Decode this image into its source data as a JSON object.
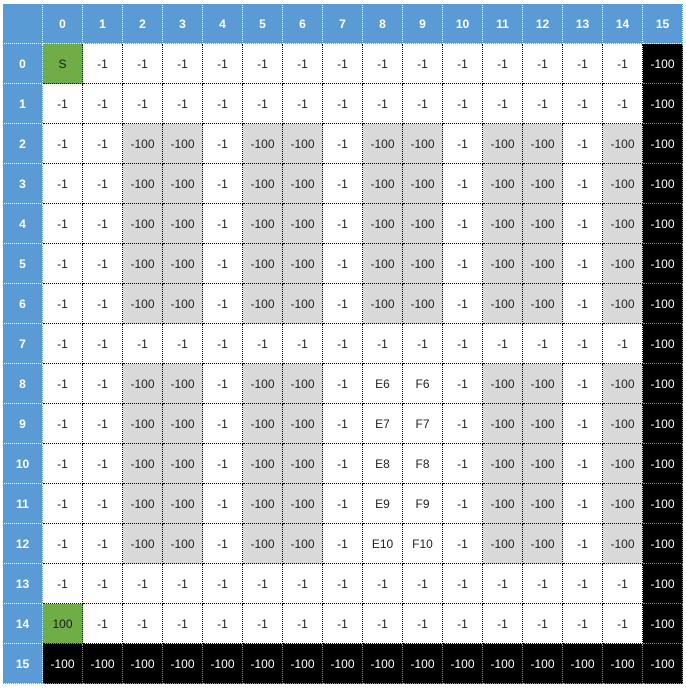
{
  "grid": {
    "column_headers": [
      "",
      "0",
      "1",
      "2",
      "3",
      "4",
      "5",
      "6",
      "7",
      "8",
      "9",
      "10",
      "11",
      "12",
      "13",
      "14",
      "15"
    ],
    "row_headers": [
      "0",
      "1",
      "2",
      "3",
      "4",
      "5",
      "6",
      "7",
      "8",
      "9",
      "10",
      "11",
      "12",
      "13",
      "14",
      "15"
    ],
    "colors": {
      "header": "#5b9bd5",
      "white": "#ffffff",
      "gray": "#d9d9d9",
      "green": "#70ad47",
      "black": "#000000"
    },
    "rows": [
      {
        "values": [
          "S",
          "-1",
          "-1",
          "-1",
          "-1",
          "-1",
          "-1",
          "-1",
          "-1",
          "-1",
          "-1",
          "-1",
          "-1",
          "-1",
          "-1",
          "-100"
        ],
        "fills": [
          "green",
          "white",
          "white",
          "white",
          "white",
          "white",
          "white",
          "white",
          "white",
          "white",
          "white",
          "white",
          "white",
          "white",
          "white",
          "black"
        ]
      },
      {
        "values": [
          "-1",
          "-1",
          "-1",
          "-1",
          "-1",
          "-1",
          "-1",
          "-1",
          "-1",
          "-1",
          "-1",
          "-1",
          "-1",
          "-1",
          "-1",
          "-100"
        ],
        "fills": [
          "white",
          "white",
          "white",
          "white",
          "white",
          "white",
          "white",
          "white",
          "white",
          "white",
          "white",
          "white",
          "white",
          "white",
          "white",
          "black"
        ]
      },
      {
        "values": [
          "-1",
          "-1",
          "-100",
          "-100",
          "-1",
          "-100",
          "-100",
          "-1",
          "-100",
          "-100",
          "-1",
          "-100",
          "-100",
          "-1",
          "-100",
          "-100"
        ],
        "fills": [
          "white",
          "white",
          "gray",
          "gray",
          "white",
          "gray",
          "gray",
          "white",
          "gray",
          "gray",
          "white",
          "gray",
          "gray",
          "white",
          "gray",
          "black"
        ]
      },
      {
        "values": [
          "-1",
          "-1",
          "-100",
          "-100",
          "-1",
          "-100",
          "-100",
          "-1",
          "-100",
          "-100",
          "-1",
          "-100",
          "-100",
          "-1",
          "-100",
          "-100"
        ],
        "fills": [
          "white",
          "white",
          "gray",
          "gray",
          "white",
          "gray",
          "gray",
          "white",
          "gray",
          "gray",
          "white",
          "gray",
          "gray",
          "white",
          "gray",
          "black"
        ]
      },
      {
        "values": [
          "-1",
          "-1",
          "-100",
          "-100",
          "-1",
          "-100",
          "-100",
          "-1",
          "-100",
          "-100",
          "-1",
          "-100",
          "-100",
          "-1",
          "-100",
          "-100"
        ],
        "fills": [
          "white",
          "white",
          "gray",
          "gray",
          "white",
          "gray",
          "gray",
          "white",
          "gray",
          "gray",
          "white",
          "gray",
          "gray",
          "white",
          "gray",
          "black"
        ]
      },
      {
        "values": [
          "-1",
          "-1",
          "-100",
          "-100",
          "-1",
          "-100",
          "-100",
          "-1",
          "-100",
          "-100",
          "-1",
          "-100",
          "-100",
          "-1",
          "-100",
          "-100"
        ],
        "fills": [
          "white",
          "white",
          "gray",
          "gray",
          "white",
          "gray",
          "gray",
          "white",
          "gray",
          "gray",
          "white",
          "gray",
          "gray",
          "white",
          "gray",
          "black"
        ]
      },
      {
        "values": [
          "-1",
          "-1",
          "-100",
          "-100",
          "-1",
          "-100",
          "-100",
          "-1",
          "-100",
          "-100",
          "-1",
          "-100",
          "-100",
          "-1",
          "-100",
          "-100"
        ],
        "fills": [
          "white",
          "white",
          "gray",
          "gray",
          "white",
          "gray",
          "gray",
          "white",
          "gray",
          "gray",
          "white",
          "gray",
          "gray",
          "white",
          "gray",
          "black"
        ]
      },
      {
        "values": [
          "-1",
          "-1",
          "-1",
          "-1",
          "-1",
          "-1",
          "-1",
          "-1",
          "-1",
          "-1",
          "-1",
          "-1",
          "-1",
          "-1",
          "-1",
          "-100"
        ],
        "fills": [
          "white",
          "white",
          "white",
          "white",
          "white",
          "white",
          "white",
          "white",
          "white",
          "white",
          "white",
          "white",
          "white",
          "white",
          "white",
          "black"
        ]
      },
      {
        "values": [
          "-1",
          "-1",
          "-100",
          "-100",
          "-1",
          "-100",
          "-100",
          "-1",
          "E6",
          "F6",
          "-1",
          "-100",
          "-100",
          "-1",
          "-100",
          "-100"
        ],
        "fills": [
          "white",
          "white",
          "gray",
          "gray",
          "white",
          "gray",
          "gray",
          "white",
          "white",
          "white",
          "white",
          "gray",
          "gray",
          "white",
          "gray",
          "black"
        ]
      },
      {
        "values": [
          "-1",
          "-1",
          "-100",
          "-100",
          "-1",
          "-100",
          "-100",
          "-1",
          "E7",
          "F7",
          "-1",
          "-100",
          "-100",
          "-1",
          "-100",
          "-100"
        ],
        "fills": [
          "white",
          "white",
          "gray",
          "gray",
          "white",
          "gray",
          "gray",
          "white",
          "white",
          "white",
          "white",
          "gray",
          "gray",
          "white",
          "gray",
          "black"
        ]
      },
      {
        "values": [
          "-1",
          "-1",
          "-100",
          "-100",
          "-1",
          "-100",
          "-100",
          "-1",
          "E8",
          "F8",
          "-1",
          "-100",
          "-100",
          "-1",
          "-100",
          "-100"
        ],
        "fills": [
          "white",
          "white",
          "gray",
          "gray",
          "white",
          "gray",
          "gray",
          "white",
          "white",
          "white",
          "white",
          "gray",
          "gray",
          "white",
          "gray",
          "black"
        ]
      },
      {
        "values": [
          "-1",
          "-1",
          "-100",
          "-100",
          "-1",
          "-100",
          "-100",
          "-1",
          "E9",
          "F9",
          "-1",
          "-100",
          "-100",
          "-1",
          "-100",
          "-100"
        ],
        "fills": [
          "white",
          "white",
          "gray",
          "gray",
          "white",
          "gray",
          "gray",
          "white",
          "white",
          "white",
          "white",
          "gray",
          "gray",
          "white",
          "gray",
          "black"
        ]
      },
      {
        "values": [
          "-1",
          "-1",
          "-100",
          "-100",
          "-1",
          "-100",
          "-100",
          "-1",
          "E10",
          "F10",
          "-1",
          "-100",
          "-100",
          "-1",
          "-100",
          "-100"
        ],
        "fills": [
          "white",
          "white",
          "gray",
          "gray",
          "white",
          "gray",
          "gray",
          "white",
          "white",
          "white",
          "white",
          "gray",
          "gray",
          "white",
          "gray",
          "black"
        ]
      },
      {
        "values": [
          "-1",
          "-1",
          "-1",
          "-1",
          "-1",
          "-1",
          "-1",
          "-1",
          "-1",
          "-1",
          "-1",
          "-1",
          "-1",
          "-1",
          "-1",
          "-100"
        ],
        "fills": [
          "white",
          "white",
          "white",
          "white",
          "white",
          "white",
          "white",
          "white",
          "white",
          "white",
          "white",
          "white",
          "white",
          "white",
          "white",
          "black"
        ]
      },
      {
        "values": [
          "100",
          "-1",
          "-1",
          "-1",
          "-1",
          "-1",
          "-1",
          "-1",
          "-1",
          "-1",
          "-1",
          "-1",
          "-1",
          "-1",
          "-1",
          "-100"
        ],
        "fills": [
          "green",
          "white",
          "white",
          "white",
          "white",
          "white",
          "white",
          "white",
          "white",
          "white",
          "white",
          "white",
          "white",
          "white",
          "white",
          "black"
        ]
      },
      {
        "values": [
          "-100",
          "-100",
          "-100",
          "-100",
          "-100",
          "-100",
          "-100",
          "-100",
          "-100",
          "-100",
          "-100",
          "-100",
          "-100",
          "-100",
          "-100",
          "-100"
        ],
        "fills": [
          "black",
          "black",
          "black",
          "black",
          "black",
          "black",
          "black",
          "black",
          "black",
          "black",
          "black",
          "black",
          "black",
          "black",
          "black",
          "black"
        ]
      }
    ]
  }
}
